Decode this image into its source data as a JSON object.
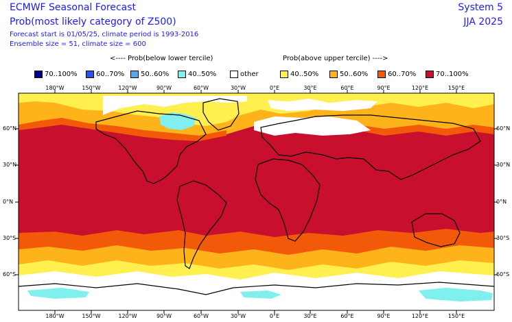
{
  "header": {
    "title": "ECMWF Seasonal Forecast",
    "subtitle": "Prob(most likely category of Z500)",
    "forecast_line": "Forecast start is 01/05/25, climate period is 1993-2016",
    "ensemble_line": "Ensemble size = 51, climate size = 600",
    "system": "System 5",
    "season": "JJA 2025"
  },
  "arrows": {
    "below": "<---- Prob(below lower tercile)",
    "above": "Prob(above upper tercile) ---->"
  },
  "legend": [
    {
      "label": "70..100%",
      "color": "#00008c"
    },
    {
      "label": "60..70%",
      "color": "#2a52e8"
    },
    {
      "label": "50..60%",
      "color": "#5aa8ea"
    },
    {
      "label": "40..50%",
      "color": "#7ff0ee"
    },
    {
      "label": "other",
      "color": "#ffffff"
    },
    {
      "label": "40..50%",
      "color": "#fff050"
    },
    {
      "label": "50..60%",
      "color": "#ffb31a"
    },
    {
      "label": "60..70%",
      "color": "#f25a0a"
    },
    {
      "label": "70..100%",
      "color": "#c8102e"
    }
  ],
  "lon_ticks": [
    "180°W",
    "150°W",
    "120°W",
    "90°W",
    "60°W",
    "30°W",
    "0°E",
    "30°E",
    "60°E",
    "90°E",
    "120°E",
    "150°E"
  ],
  "lat_ticks": [
    "60°N",
    "30°N",
    "0°N",
    "30°S",
    "60°S"
  ]
}
